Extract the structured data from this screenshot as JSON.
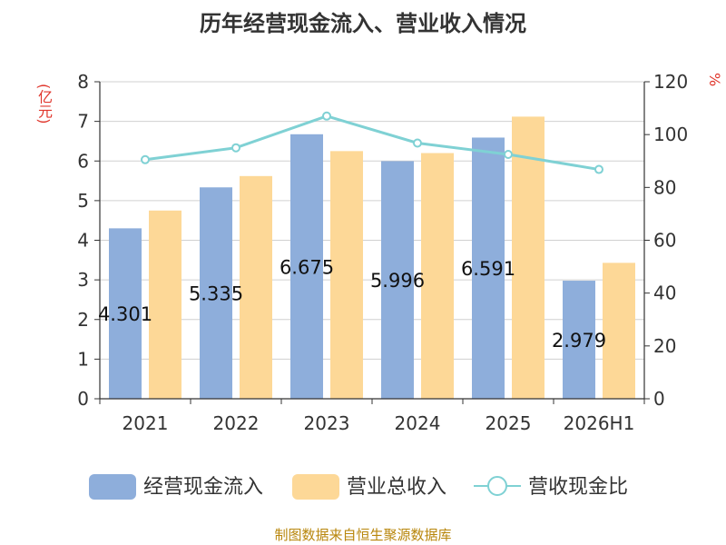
{
  "chart_data": {
    "type": "bar",
    "title": "历年经营现金流入、营业收入情况",
    "categories": [
      "2021",
      "2022",
      "2023",
      "2024",
      "2025",
      "2026H1"
    ],
    "left_unit": "(亿元)",
    "right_unit": "%",
    "y_left": {
      "min": 0,
      "max": 8,
      "ticks": [
        0,
        1,
        2,
        3,
        4,
        5,
        6,
        7,
        8
      ]
    },
    "y_right": {
      "min": 0,
      "max": 120,
      "ticks": [
        0,
        20,
        40,
        60,
        80,
        100,
        120
      ]
    },
    "grid": true,
    "legend_position": "bottom",
    "series": [
      {
        "name": "经营现金流入",
        "type": "bar",
        "axis": "left",
        "color": "#8eaedb",
        "values": [
          4.301,
          5.335,
          6.675,
          5.996,
          6.591,
          2.979
        ],
        "labels": [
          "4.301",
          "5.335",
          "6.675",
          "5.996",
          "6.591",
          "2.979"
        ]
      },
      {
        "name": "营业总收入",
        "type": "bar",
        "axis": "left",
        "color": "#fdd897",
        "values": [
          4.75,
          5.62,
          6.25,
          6.2,
          7.12,
          3.43
        ]
      },
      {
        "name": "营收现金比",
        "type": "line",
        "axis": "right",
        "color": "#7fd1d4",
        "values": [
          90.5,
          95.0,
          107.0,
          96.8,
          92.5,
          86.8
        ]
      }
    ]
  },
  "source": "制图数据来自恒生聚源数据库"
}
